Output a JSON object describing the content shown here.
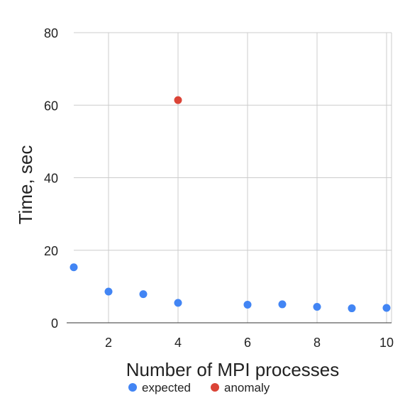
{
  "chart_data": {
    "type": "scatter",
    "title": "",
    "xlabel": "Number of MPI processes",
    "ylabel": "Time, sec",
    "xlim": [
      1,
      10
    ],
    "ylim": [
      0,
      80
    ],
    "x_ticks": [
      2,
      4,
      6,
      8,
      10
    ],
    "y_ticks": [
      0,
      20,
      40,
      60,
      80
    ],
    "grid": true,
    "legend_position": "bottom",
    "series": [
      {
        "name": "expected",
        "color": "#4285F4",
        "points": [
          {
            "x": 1,
            "y": 15.3
          },
          {
            "x": 2,
            "y": 8.6
          },
          {
            "x": 3,
            "y": 7.9
          },
          {
            "x": 4,
            "y": 5.5
          },
          {
            "x": 6,
            "y": 5.0
          },
          {
            "x": 7,
            "y": 5.1
          },
          {
            "x": 8,
            "y": 4.4
          },
          {
            "x": 9,
            "y": 4.0
          },
          {
            "x": 10,
            "y": 4.1
          }
        ]
      },
      {
        "name": "anomaly",
        "color": "#DB4437",
        "points": [
          {
            "x": 4,
            "y": 61.4
          }
        ]
      }
    ]
  }
}
